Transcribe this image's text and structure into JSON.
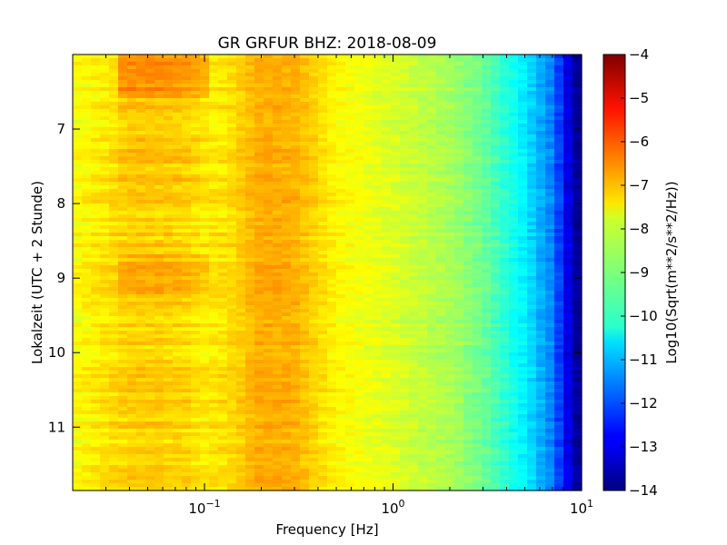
{
  "chart_data": {
    "type": "heatmap",
    "title": "GR GRFUR BHZ: 2018-08-09",
    "xlabel": "Frequency [Hz]",
    "ylabel": "Lokalzeit (UTC + 2 Stunde)",
    "x_scale": "log",
    "x_range_hz": [
      0.02,
      10
    ],
    "x_ticks": [
      {
        "value": 0.1,
        "base": "10",
        "exp": "−1"
      },
      {
        "value": 1,
        "base": "10",
        "exp": "0"
      },
      {
        "value": 10,
        "base": "10",
        "exp": "1"
      }
    ],
    "y_range_hours": [
      6.0,
      11.85
    ],
    "y_inverted": true,
    "y_ticks": [
      "7",
      "8",
      "9",
      "10",
      "11"
    ],
    "colorbar": {
      "label": "Log10(Sqrt(m**2/s**2/Hz))",
      "range": [
        -14,
        -4
      ],
      "ticks": [
        "−4",
        "−5",
        "−6",
        "−7",
        "−8",
        "−9",
        "−10",
        "−11",
        "−12",
        "−13",
        "−14"
      ],
      "colormap": "jet"
    },
    "spectrum_profile": {
      "freq_hz": [
        0.02,
        0.04,
        0.06,
        0.08,
        0.1,
        0.13,
        0.2,
        0.3,
        0.5,
        1,
        2,
        3,
        5,
        7,
        9,
        10
      ],
      "log10_amplitude": [
        -7.8,
        -7.3,
        -7.3,
        -7.4,
        -7.6,
        -7.5,
        -6.9,
        -7.0,
        -7.7,
        -8.1,
        -8.6,
        -9.2,
        -10.4,
        -11.5,
        -13.5,
        -14.0
      ]
    }
  }
}
